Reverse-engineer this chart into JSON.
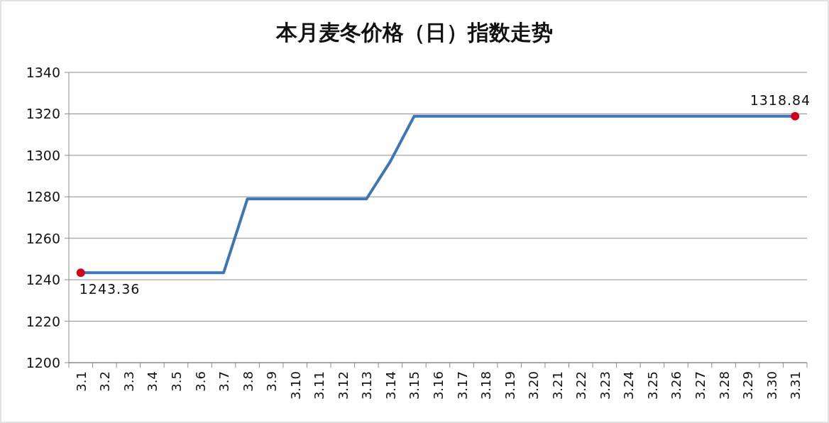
{
  "chart_data": {
    "type": "line",
    "title": "本月麦冬价格（日）指数走势",
    "categories": [
      "3.1",
      "3.2",
      "3.3",
      "3.4",
      "3.5",
      "3.6",
      "3.7",
      "3.8",
      "3.9",
      "3.10",
      "3.11",
      "3.12",
      "3.13",
      "3.14",
      "3.15",
      "3.16",
      "3.17",
      "3.18",
      "3.19",
      "3.20",
      "3.21",
      "3.22",
      "3.23",
      "3.24",
      "3.25",
      "3.26",
      "3.27",
      "3.28",
      "3.29",
      "3.30",
      "3.31"
    ],
    "series": [
      {
        "color": "#3e75b6",
        "values": [
          1243.36,
          1243.36,
          1243.36,
          1243.36,
          1243.36,
          1243.36,
          1243.36,
          1279,
          1279,
          1279,
          1279,
          1279,
          1279,
          1297,
          1318.84,
          1318.84,
          1318.84,
          1318.84,
          1318.84,
          1318.84,
          1318.84,
          1318.84,
          1318.84,
          1318.84,
          1318.84,
          1318.84,
          1318.84,
          1318.84,
          1318.84,
          1318.84,
          1318.84
        ]
      },
      {
        "type": "scatter",
        "color": "#d0021b",
        "x": [
          "3.1",
          "3.31"
        ],
        "values": [
          1243.36,
          1318.84
        ]
      }
    ],
    "ylim": [
      1200,
      1340
    ],
    "yticks": [
      1200,
      1220,
      1240,
      1260,
      1280,
      1300,
      1320,
      1340
    ],
    "grid": "y",
    "annotations": [
      {
        "text": "1243.36",
        "x": "3.1",
        "y": 1243.36
      },
      {
        "text": "1318.84",
        "x": "3.31",
        "y": 1318.84
      }
    ]
  }
}
